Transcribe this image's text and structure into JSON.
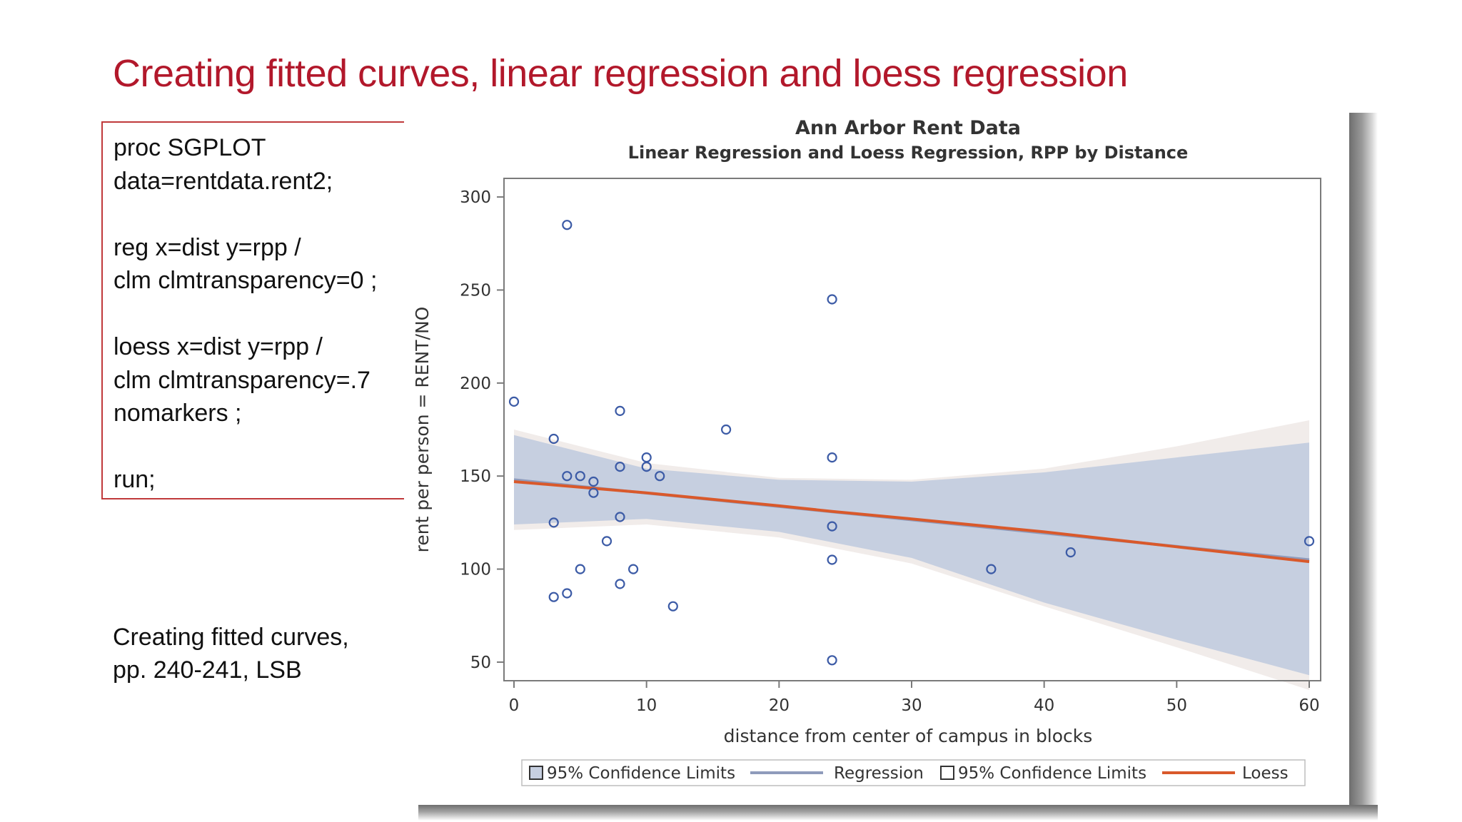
{
  "slide": {
    "title": "Creating fitted curves, linear regression and loess regression",
    "code_lines": [
      "proc SGPLOT",
      "data=rentdata.rent2;",
      "",
      "reg x=dist y=rpp /",
      "clm clmtransparency=0 ;",
      "",
      "loess x=dist y=rpp /",
      "clm clmtransparency=.7",
      "nomarkers ;",
      "",
      "run;"
    ],
    "caption_lines": [
      "Creating fitted curves,",
      "pp. 240-241, LSB"
    ]
  },
  "chart_data": {
    "type": "scatter",
    "title": "Ann Arbor Rent Data",
    "subtitle": "Linear Regression and Loess Regression, RPP by Distance",
    "xlabel": "distance from center of campus in blocks",
    "ylabel": "rent per person = RENT/NO",
    "xlim": [
      0,
      60
    ],
    "ylim": [
      40,
      310
    ],
    "xticks": [
      0,
      10,
      20,
      30,
      40,
      50,
      60
    ],
    "yticks": [
      50,
      100,
      150,
      200,
      250,
      300
    ],
    "grid": false,
    "legend_position": "bottom",
    "colors": {
      "marker": "#3c5ba6",
      "regression_band": "#c6cfe0",
      "regression_line": "#8f9bbb",
      "loess_band": "#f1ecea",
      "loess_line": "#d9592b",
      "axis": "#7a7a7a"
    },
    "points": [
      [
        0,
        190
      ],
      [
        3,
        170
      ],
      [
        3,
        125
      ],
      [
        3,
        85
      ],
      [
        4,
        285
      ],
      [
        4,
        150
      ],
      [
        4,
        87
      ],
      [
        5,
        150
      ],
      [
        5,
        100
      ],
      [
        6,
        147
      ],
      [
        6,
        141
      ],
      [
        7,
        115
      ],
      [
        8,
        185
      ],
      [
        8,
        155
      ],
      [
        8,
        128
      ],
      [
        8,
        92
      ],
      [
        9,
        100
      ],
      [
        10,
        160
      ],
      [
        10,
        155
      ],
      [
        11,
        150
      ],
      [
        12,
        80
      ],
      [
        16,
        175
      ],
      [
        24,
        245
      ],
      [
        24,
        160
      ],
      [
        24,
        123
      ],
      [
        24,
        105
      ],
      [
        24,
        51
      ],
      [
        36,
        100
      ],
      [
        42,
        109
      ],
      [
        60,
        115
      ]
    ],
    "regression_line": {
      "x": [
        0,
        60
      ],
      "y": [
        148,
        105
      ]
    },
    "regression_band": {
      "x": [
        0,
        10,
        20,
        30,
        40,
        50,
        60
      ],
      "upper": [
        172,
        154,
        148,
        147,
        152,
        160,
        168
      ],
      "lower": [
        124,
        127,
        120,
        106,
        82,
        62,
        43
      ]
    },
    "loess_line": {
      "x": [
        0,
        10,
        20,
        24,
        30,
        40,
        50,
        60
      ],
      "y": [
        147,
        141,
        134,
        131,
        127,
        120,
        112,
        104
      ]
    },
    "loess_band": {
      "x": [
        0,
        10,
        20,
        30,
        40,
        50,
        60
      ],
      "upper": [
        175,
        157,
        149,
        148,
        154,
        166,
        180
      ],
      "lower": [
        121,
        124,
        117,
        103,
        80,
        58,
        35
      ]
    },
    "legend": [
      {
        "kind": "box-filled",
        "label": "95% Confidence Limits"
      },
      {
        "kind": "line-blue",
        "label": "Regression"
      },
      {
        "kind": "box-empty",
        "label": "95% Confidence Limits"
      },
      {
        "kind": "line-orange",
        "label": "Loess"
      }
    ]
  }
}
